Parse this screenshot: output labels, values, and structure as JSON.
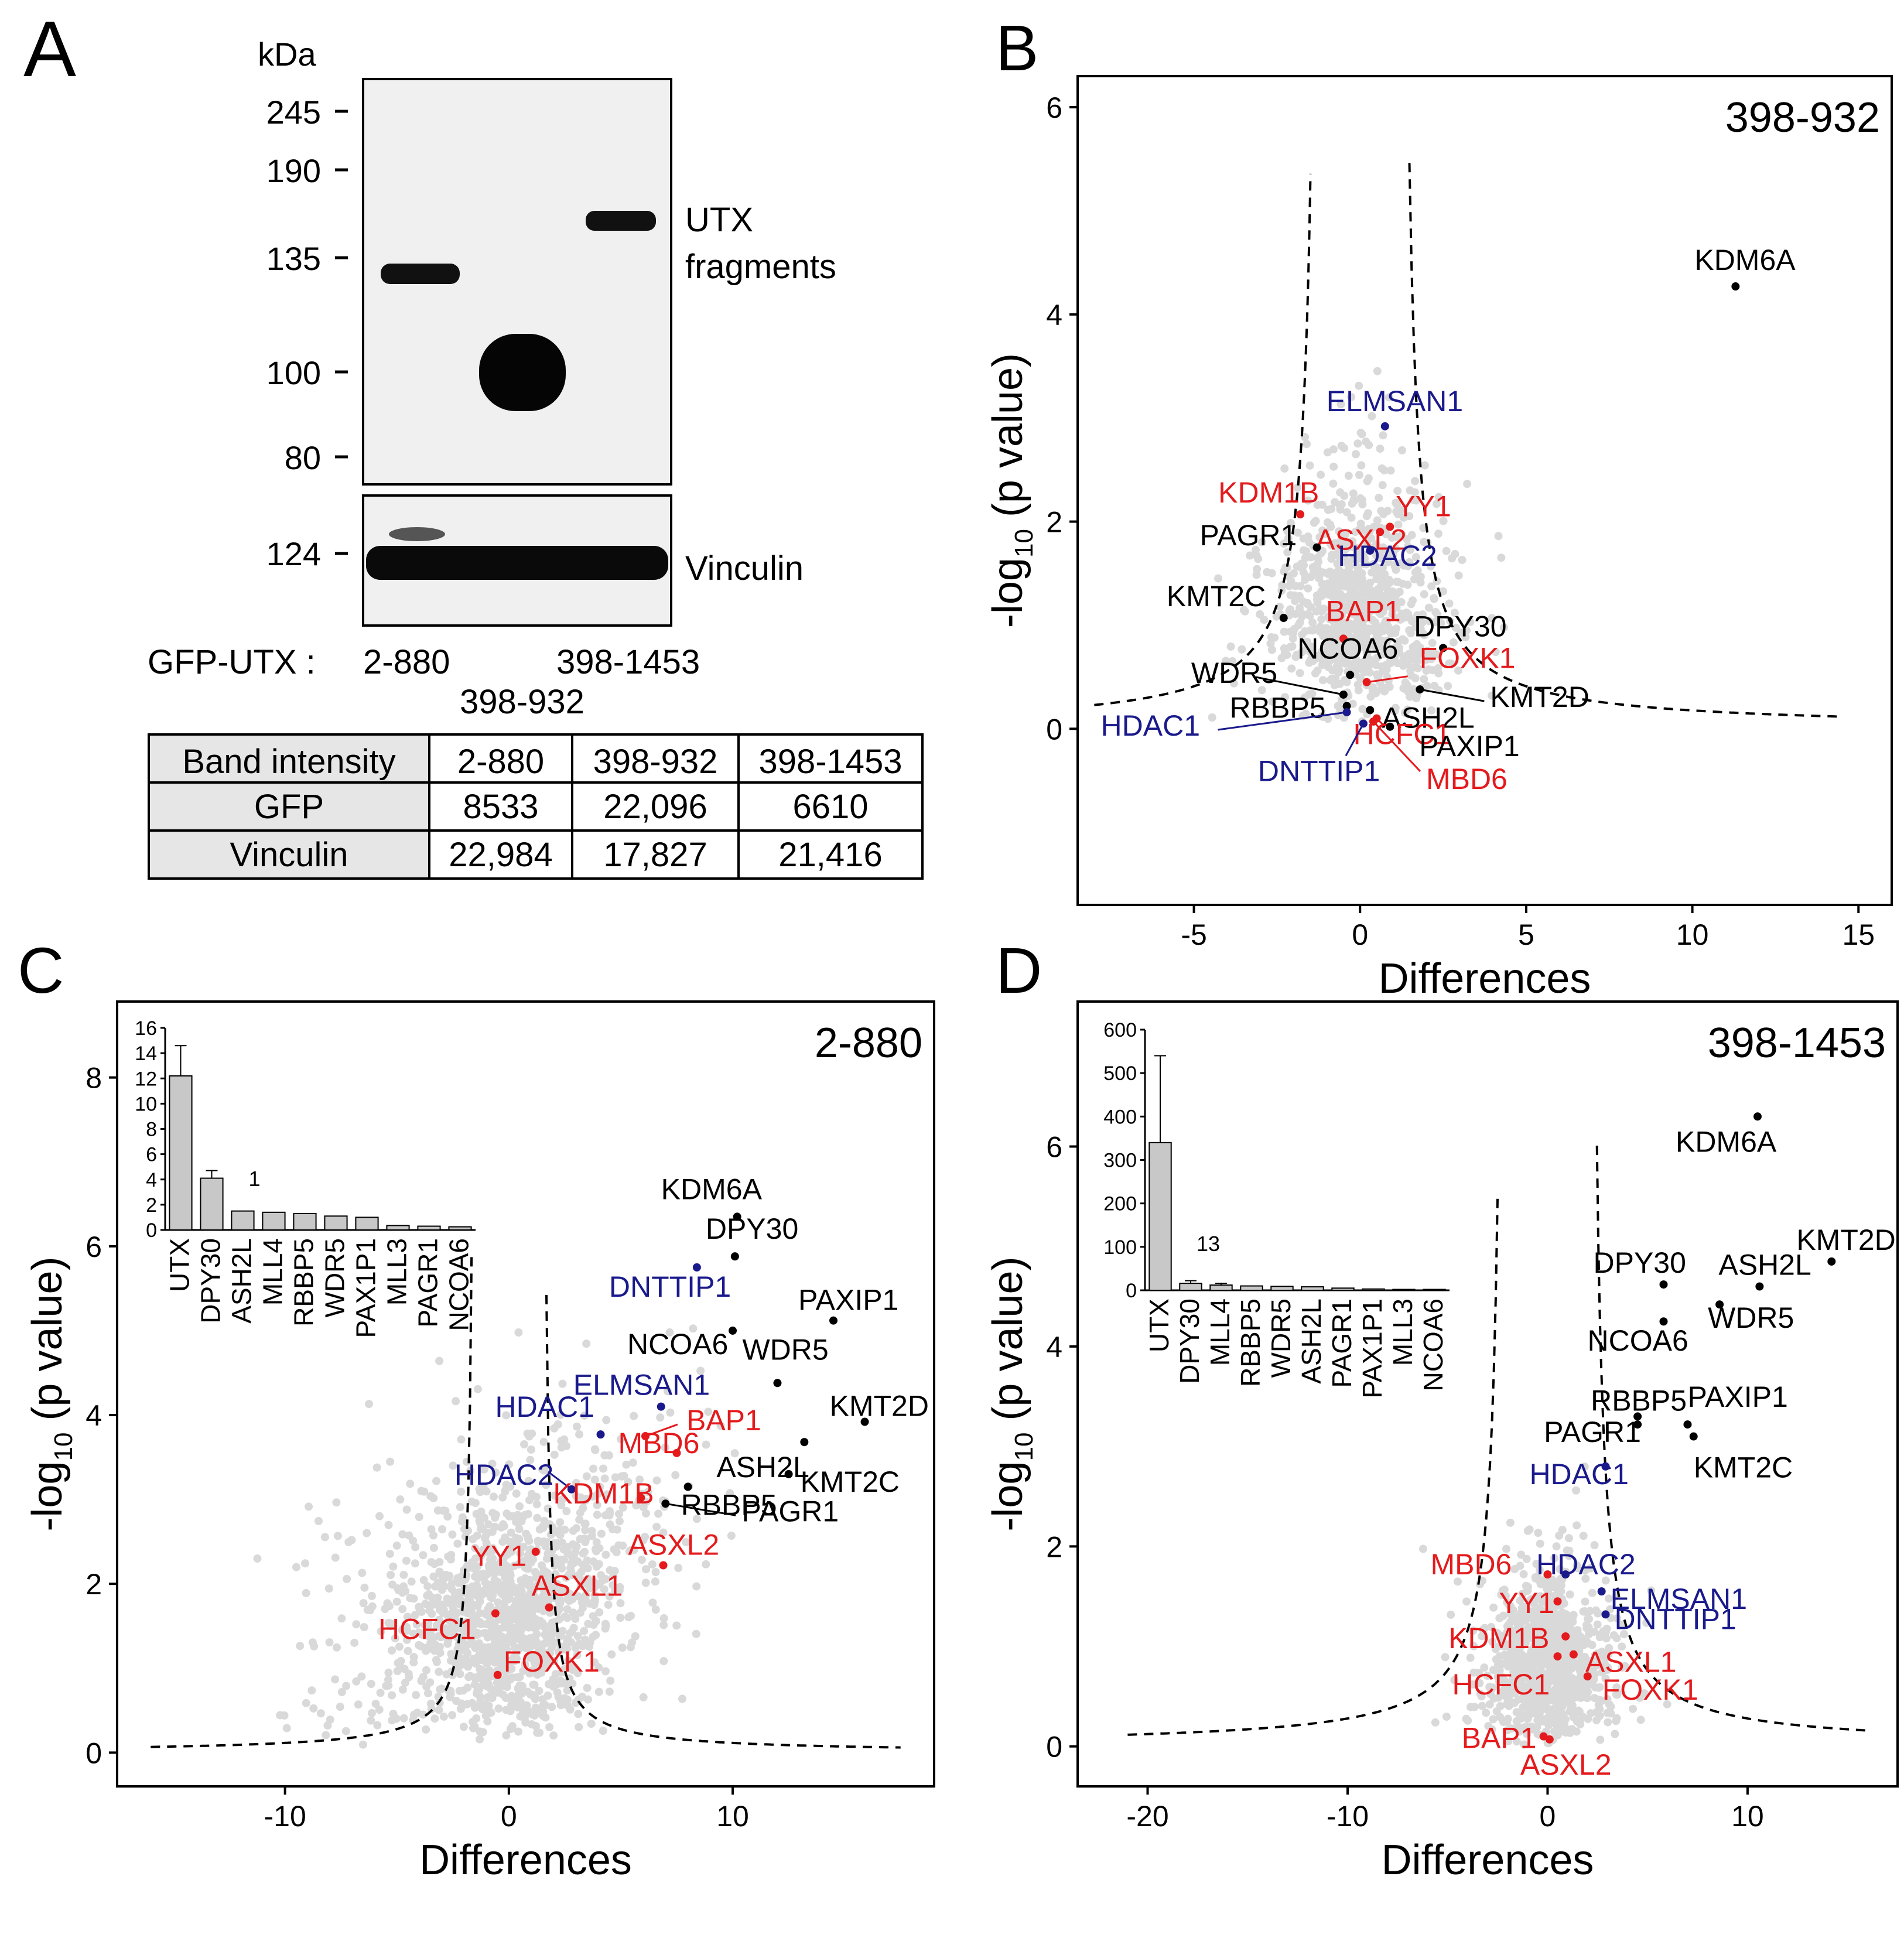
{
  "panel_letters": [
    "A",
    "B",
    "C",
    "D"
  ],
  "panelA": {
    "kda_label": "kDa",
    "markers": [
      "245",
      "190",
      "135",
      "100",
      "80"
    ],
    "vinculin_marker": "124",
    "utx_label_1": "UTX",
    "utx_label_2": "fragments",
    "vinculin_label": "Vinculin",
    "gfp_utx_label": "GFP-UTX :",
    "lane_labels": [
      "2-880",
      "398-932",
      "398-1453"
    ],
    "table": {
      "header": [
        "Band intensity",
        "2-880",
        "398-932",
        "398-1453"
      ],
      "rows": [
        [
          "GFP",
          "8533",
          "22,096",
          "6610"
        ],
        [
          "Vinculin",
          "22,984",
          "17,827",
          "21,416"
        ]
      ]
    }
  },
  "colors": {
    "black": "#000000",
    "red": "#e41a1c",
    "blue": "#1a1a8c",
    "grey_points": "#d9d9d9",
    "bar_fill": "#c8c8c8"
  },
  "chart_data": [
    {
      "panel": "B",
      "type": "scatter",
      "title": "398-932",
      "xlabel": "Differences",
      "ylabel_parts": [
        "-log",
        "10",
        " (p value)"
      ],
      "xlim": [
        -8.5,
        16
      ],
      "ylim": [
        -1.7,
        6.3
      ],
      "xticks": [
        -5,
        0,
        5,
        10,
        15
      ],
      "yticks": [
        0,
        2,
        4,
        6
      ],
      "threshold_curve": {
        "s0": 1.2,
        "c": 1.3,
        "x_range": [
          -8,
          14.5
        ]
      },
      "highlighted": [
        {
          "label": "KDM6A",
          "x": 11.3,
          "y": 4.27,
          "group": "black"
        },
        {
          "label": "ELMSAN1",
          "x": 0.75,
          "y": 2.92,
          "group": "blue"
        },
        {
          "label": "KDM1B",
          "x": -1.8,
          "y": 2.07,
          "group": "red"
        },
        {
          "label": "YY1",
          "x": 0.9,
          "y": 1.95,
          "group": "red"
        },
        {
          "label": "ASXL2",
          "x": 0.6,
          "y": 1.9,
          "group": "red"
        },
        {
          "label": "PAGR1",
          "x": -1.3,
          "y": 1.75,
          "group": "black"
        },
        {
          "label": "HDAC2",
          "x": 0.3,
          "y": 1.72,
          "group": "blue"
        },
        {
          "label": "KMT2C",
          "x": -2.3,
          "y": 1.07,
          "group": "black"
        },
        {
          "label": "BAP1",
          "x": -0.5,
          "y": 0.87,
          "group": "red"
        },
        {
          "label": "DPY30",
          "x": 2.5,
          "y": 0.78,
          "group": "black"
        },
        {
          "label": "NCOA6",
          "x": -0.3,
          "y": 0.52,
          "group": "black"
        },
        {
          "label": "FOXK1",
          "x": 0.2,
          "y": 0.45,
          "group": "red"
        },
        {
          "label": "WDR5",
          "x": -0.5,
          "y": 0.33,
          "group": "black"
        },
        {
          "label": "KMT2D",
          "x": 1.8,
          "y": 0.38,
          "group": "black"
        },
        {
          "label": "RBBP5",
          "x": -0.4,
          "y": 0.22,
          "group": "black"
        },
        {
          "label": "ASH2L",
          "x": 0.3,
          "y": 0.18,
          "group": "black"
        },
        {
          "label": "HDAC1",
          "x": -0.4,
          "y": 0.16,
          "group": "blue"
        },
        {
          "label": "HCFC1",
          "x": 0.5,
          "y": 0.1,
          "group": "red"
        },
        {
          "label": "PAXIP1",
          "x": 0.9,
          "y": 0.02,
          "group": "black"
        },
        {
          "label": "DNTTIP1",
          "x": 0.1,
          "y": 0.05,
          "group": "blue"
        },
        {
          "label": "MBD6",
          "x": 0.4,
          "y": 0.07,
          "group": "red"
        }
      ]
    },
    {
      "panel": "C",
      "type": "scatter",
      "title": "2-880",
      "xlabel": "Differences",
      "ylabel_parts": [
        "-log",
        "10",
        " (p value)"
      ],
      "xlim": [
        -17.5,
        19
      ],
      "ylim": [
        -0.4,
        8.9
      ],
      "xticks": [
        -10,
        0,
        10
      ],
      "yticks": [
        0,
        2,
        4,
        6,
        8
      ],
      "threshold_curve": {
        "s0": 1.5,
        "c": 0.65,
        "x_range": [
          -16,
          17.5
        ]
      },
      "highlighted": [
        {
          "label": "KDM6A",
          "x": 10.2,
          "y": 6.35,
          "group": "black"
        },
        {
          "label": "DPY30",
          "x": 10.1,
          "y": 5.88,
          "group": "black"
        },
        {
          "label": "DNTTIP1",
          "x": 8.4,
          "y": 5.75,
          "group": "blue"
        },
        {
          "label": "PAXIP1",
          "x": 14.5,
          "y": 5.12,
          "group": "black"
        },
        {
          "label": "NCOA6",
          "x": 10.0,
          "y": 5.0,
          "group": "black"
        },
        {
          "label": "ELMSAN1",
          "x": 6.8,
          "y": 4.1,
          "group": "blue"
        },
        {
          "label": "WDR5",
          "x": 12.0,
          "y": 4.38,
          "group": "black"
        },
        {
          "label": "KMT2D",
          "x": 15.9,
          "y": 3.92,
          "group": "black"
        },
        {
          "label": "HDAC1",
          "x": 4.1,
          "y": 3.77,
          "group": "blue"
        },
        {
          "label": "BAP1",
          "x": 6.1,
          "y": 3.75,
          "group": "red"
        },
        {
          "label": "MBD6",
          "x": 7.5,
          "y": 3.55,
          "group": "red"
        },
        {
          "label": "ASH2L",
          "x": 13.2,
          "y": 3.68,
          "group": "black"
        },
        {
          "label": "HDAC2",
          "x": 2.8,
          "y": 3.12,
          "group": "blue"
        },
        {
          "label": "KDM1B",
          "x": 5.9,
          "y": 3.02,
          "group": "red"
        },
        {
          "label": "KMT2C",
          "x": 12.5,
          "y": 3.3,
          "group": "black"
        },
        {
          "label": "RBBP5",
          "x": 8.0,
          "y": 3.15,
          "group": "black"
        },
        {
          "label": "PAGR1",
          "x": 7.0,
          "y": 2.95,
          "group": "black"
        },
        {
          "label": "ASXL2",
          "x": 6.9,
          "y": 2.22,
          "group": "red"
        },
        {
          "label": "YY1",
          "x": 1.2,
          "y": 2.38,
          "group": "red"
        },
        {
          "label": "ASXL1",
          "x": 1.8,
          "y": 1.72,
          "group": "red"
        },
        {
          "label": "HCFC1",
          "x": -0.6,
          "y": 1.65,
          "group": "red"
        },
        {
          "label": "FOXK1",
          "x": -0.5,
          "y": 0.92,
          "group": "red"
        }
      ],
      "inset": {
        "type": "bar",
        "categories": [
          "UTX",
          "DPY30",
          "ASH2L",
          "MLL4",
          "RBBP5",
          "WDR5",
          "PAX1P1",
          "MLL3",
          "PAGR1",
          "NCOA6"
        ],
        "values": [
          12.2,
          4.1,
          1.5,
          1.4,
          1.3,
          1.1,
          1.0,
          0.35,
          0.3,
          0.25
        ],
        "errors": [
          2.4,
          0.6,
          0,
          0,
          0,
          0,
          0,
          0,
          0,
          0
        ],
        "ylim": [
          0,
          16
        ],
        "yticks": [
          0,
          2,
          4,
          6,
          8,
          10,
          12,
          14,
          16
        ],
        "annotation": "1"
      }
    },
    {
      "panel": "D",
      "type": "scatter",
      "title": "398-1453",
      "xlabel": "Differences",
      "ylabel_parts": [
        "-log",
        "10",
        " (p value)"
      ],
      "xlim": [
        -23.5,
        17.5
      ],
      "ylim": [
        -0.4,
        7.45
      ],
      "xticks": [
        -20,
        -10,
        0,
        10
      ],
      "yticks": [
        0,
        2,
        4,
        6
      ],
      "threshold_curve": {
        "s0": 2.1,
        "c": 1.05,
        "x_range": [
          -21,
          16
        ]
      },
      "highlighted": [
        {
          "label": "KDM6A",
          "x": 10.5,
          "y": 6.3,
          "group": "black"
        },
        {
          "label": "KMT2D",
          "x": 14.2,
          "y": 4.85,
          "group": "black"
        },
        {
          "label": "DPY30",
          "x": 5.8,
          "y": 4.62,
          "group": "black"
        },
        {
          "label": "ASH2L",
          "x": 10.6,
          "y": 4.6,
          "group": "black"
        },
        {
          "label": "WDR5",
          "x": 8.6,
          "y": 4.42,
          "group": "black"
        },
        {
          "label": "NCOA6",
          "x": 5.8,
          "y": 4.25,
          "group": "black"
        },
        {
          "label": "RBBP5",
          "x": 4.5,
          "y": 3.3,
          "group": "black"
        },
        {
          "label": "PAXIP1",
          "x": 7.0,
          "y": 3.22,
          "group": "black"
        },
        {
          "label": "PAGR1",
          "x": 4.5,
          "y": 3.22,
          "group": "black"
        },
        {
          "label": "KMT2C",
          "x": 7.3,
          "y": 3.1,
          "group": "black"
        },
        {
          "label": "HDAC1",
          "x": 2.9,
          "y": 2.8,
          "group": "blue"
        },
        {
          "label": "HDAC2",
          "x": 0.9,
          "y": 1.72,
          "group": "blue"
        },
        {
          "label": "MBD6",
          "x": 0.0,
          "y": 1.72,
          "group": "red"
        },
        {
          "label": "ELMSAN1",
          "x": 2.7,
          "y": 1.55,
          "group": "blue"
        },
        {
          "label": "YY1",
          "x": 0.5,
          "y": 1.45,
          "group": "red"
        },
        {
          "label": "DNTTIP1",
          "x": 2.9,
          "y": 1.32,
          "group": "blue"
        },
        {
          "label": "KDM1B",
          "x": 0.9,
          "y": 1.1,
          "group": "red"
        },
        {
          "label": "ASXL1",
          "x": 1.3,
          "y": 0.92,
          "group": "red"
        },
        {
          "label": "HCFC1",
          "x": 0.5,
          "y": 0.9,
          "group": "red"
        },
        {
          "label": "FOXK1",
          "x": 2.0,
          "y": 0.7,
          "group": "red"
        },
        {
          "label": "BAP1",
          "x": -0.2,
          "y": 0.1,
          "group": "red"
        },
        {
          "label": "ASXL2",
          "x": 0.1,
          "y": 0.07,
          "group": "red"
        }
      ],
      "inset": {
        "type": "bar",
        "categories": [
          "UTX",
          "DPY30",
          "MLL4",
          "RBBP5",
          "WDR5",
          "ASH2L",
          "PAGR1",
          "PAX1P1",
          "MLL3",
          "NCOA6"
        ],
        "values": [
          340,
          16,
          12,
          10,
          9,
          8,
          5,
          3,
          2,
          2
        ],
        "errors": [
          200,
          6,
          4,
          0,
          0,
          0,
          0,
          0,
          0,
          0
        ],
        "ylim": [
          0,
          600
        ],
        "yticks": [
          0,
          100,
          200,
          300,
          400,
          500,
          600
        ],
        "annotation": "13"
      }
    }
  ]
}
